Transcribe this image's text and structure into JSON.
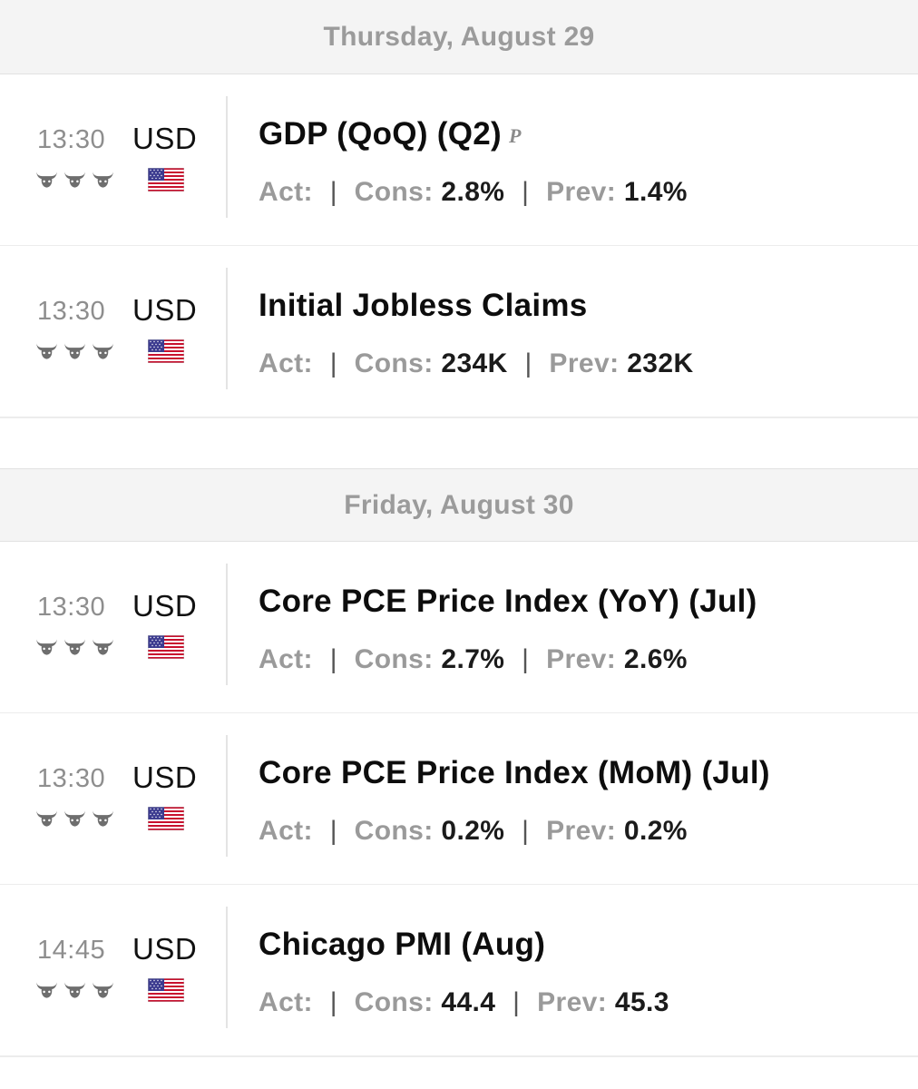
{
  "days": [
    {
      "label": "Thursday, August 29",
      "events": [
        {
          "time": "13:30",
          "currency": "USD",
          "title": "GDP (QoQ) (Q2)",
          "marker": "P",
          "importance": 3,
          "flag": "us-flag-icon",
          "act_label": "Act:",
          "act_value": "",
          "cons_label": "Cons:",
          "cons_value": "2.8%",
          "prev_label": "Prev:",
          "prev_value": "1.4%"
        },
        {
          "time": "13:30",
          "currency": "USD",
          "title": "Initial Jobless Claims",
          "marker": "",
          "importance": 3,
          "flag": "us-flag-icon",
          "act_label": "Act:",
          "act_value": "",
          "cons_label": "Cons:",
          "cons_value": "234K",
          "prev_label": "Prev:",
          "prev_value": "232K"
        }
      ]
    },
    {
      "label": "Friday, August 30",
      "events": [
        {
          "time": "13:30",
          "currency": "USD",
          "title": "Core PCE Price Index (YoY) (Jul)",
          "marker": "",
          "importance": 3,
          "flag": "us-flag-icon",
          "act_label": "Act:",
          "act_value": "",
          "cons_label": "Cons:",
          "cons_value": "2.7%",
          "prev_label": "Prev:",
          "prev_value": "2.6%"
        },
        {
          "time": "13:30",
          "currency": "USD",
          "title": "Core PCE Price Index (MoM) (Jul)",
          "marker": "",
          "importance": 3,
          "flag": "us-flag-icon",
          "act_label": "Act:",
          "act_value": "",
          "cons_label": "Cons:",
          "cons_value": "0.2%",
          "prev_label": "Prev:",
          "prev_value": "0.2%"
        },
        {
          "time": "14:45",
          "currency": "USD",
          "title": "Chicago PMI (Aug)",
          "marker": "",
          "importance": 3,
          "flag": "us-flag-icon",
          "act_label": "Act:",
          "act_value": "",
          "cons_label": "Cons:",
          "cons_value": "44.4",
          "prev_label": "Prev:",
          "prev_value": "45.3"
        }
      ]
    }
  ],
  "separator": "|",
  "colors": {
    "header_bg": "#f4f4f4",
    "muted": "#9a9a9a",
    "text": "#111111",
    "icon": "#6e6e6e"
  }
}
